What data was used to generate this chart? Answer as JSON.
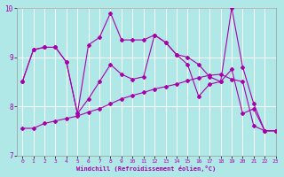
{
  "xlabel": "Windchill (Refroidissement éolien,°C)",
  "xlim": [
    -0.5,
    23
  ],
  "ylim": [
    7,
    10
  ],
  "yticks": [
    7,
    8,
    9,
    10
  ],
  "xticks": [
    0,
    1,
    2,
    3,
    4,
    5,
    6,
    7,
    8,
    9,
    10,
    11,
    12,
    13,
    14,
    15,
    16,
    17,
    18,
    19,
    20,
    21,
    22,
    23
  ],
  "bg_color": "#b0e8e8",
  "line_color": "#aa00aa",
  "grid_color": "#d0f0f0",
  "lines": [
    {
      "x": [
        0,
        1,
        2,
        3,
        4,
        5,
        6,
        7,
        8,
        9,
        10,
        11,
        12,
        13,
        14,
        15,
        16,
        17,
        18,
        19,
        20,
        21,
        22,
        23
      ],
      "y": [
        8.5,
        9.15,
        9.2,
        9.2,
        8.9,
        7.85,
        9.25,
        9.4,
        9.9,
        9.35,
        9.35,
        9.35,
        9.45,
        9.3,
        9.05,
        9.0,
        8.85,
        8.6,
        8.5,
        10.0,
        8.8,
        8.05,
        7.5,
        7.5
      ]
    },
    {
      "x": [
        0,
        1,
        2,
        3,
        4,
        5,
        6,
        7,
        8,
        9,
        10,
        11,
        12,
        13,
        14,
        15,
        16,
        17,
        18,
        19,
        20,
        21,
        22,
        23
      ],
      "y": [
        8.5,
        9.15,
        9.2,
        9.2,
        8.9,
        7.85,
        8.15,
        8.5,
        8.85,
        8.65,
        8.55,
        8.6,
        9.45,
        9.3,
        9.05,
        8.85,
        8.2,
        8.45,
        8.5,
        8.75,
        7.85,
        7.95,
        7.5,
        7.5
      ]
    },
    {
      "x": [
        0,
        1,
        2,
        3,
        4,
        5,
        6,
        7,
        8,
        9,
        10,
        11,
        12,
        13,
        14,
        15,
        16,
        17,
        18,
        19,
        20,
        21,
        22,
        23
      ],
      "y": [
        7.55,
        7.55,
        7.65,
        7.7,
        7.75,
        7.8,
        7.88,
        7.95,
        8.05,
        8.15,
        8.22,
        8.28,
        8.35,
        8.4,
        8.45,
        8.52,
        8.58,
        8.63,
        8.65,
        8.55,
        8.5,
        7.6,
        7.5,
        7.5
      ]
    }
  ]
}
